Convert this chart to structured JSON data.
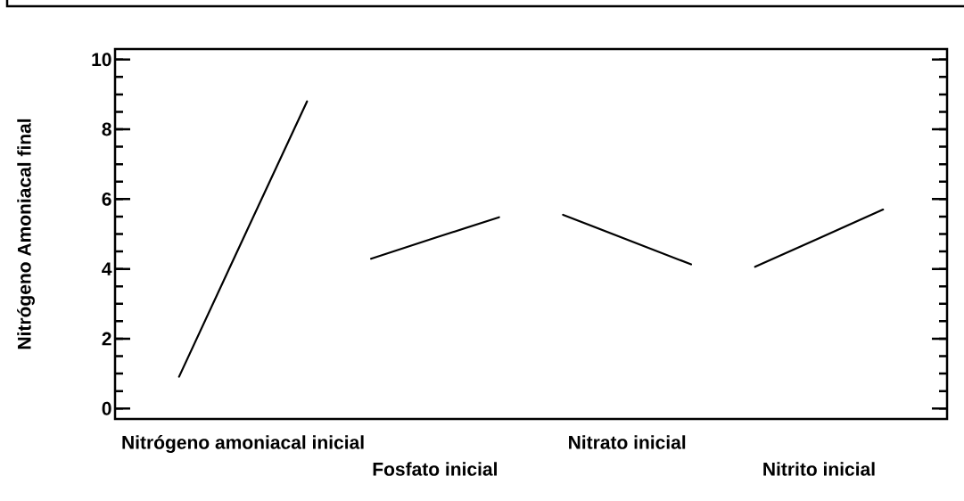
{
  "chart_data": {
    "type": "line",
    "ylabel": "Nitrógeno Amoniacal final",
    "categories": [
      null,
      "Nitrógeno amoniacal inicial",
      null,
      null,
      "Fosfato inicial",
      null,
      null,
      "Nitrato inicial",
      null,
      null,
      "Nitrito inicial",
      null
    ],
    "series": [
      {
        "color": "#000000",
        "values": [
          0.91,
          4.86,
          8.8,
          null,
          null,
          null,
          null,
          null,
          null,
          null,
          null,
          null
        ]
      },
      {
        "color": "#000000",
        "values": [
          null,
          null,
          null,
          4.29,
          4.89,
          5.48,
          null,
          null,
          null,
          null,
          null,
          null
        ]
      },
      {
        "color": "#000000",
        "values": [
          null,
          null,
          null,
          null,
          null,
          null,
          5.55,
          4.84,
          4.13,
          null,
          null,
          null
        ]
      },
      {
        "color": "#000000",
        "values": [
          null,
          null,
          null,
          null,
          null,
          null,
          null,
          null,
          null,
          4.06,
          4.88,
          5.7
        ]
      }
    ],
    "ylim": [
      -0.3,
      10.3
    ],
    "yticks": [
      0,
      {
        "value": 0.5,
        "label": null
      },
      {
        "value": 1,
        "label": null
      },
      {
        "value": 1.5,
        "label": null
      },
      2,
      {
        "value": 2.5,
        "label": null
      },
      {
        "value": 3,
        "label": null
      },
      {
        "value": 3.5,
        "label": null
      },
      4,
      {
        "value": 4.5,
        "label": null
      },
      {
        "value": 5,
        "label": null
      },
      {
        "value": 5.5,
        "label": null
      },
      6,
      {
        "value": 6.5,
        "label": null
      },
      {
        "value": 7,
        "label": null
      },
      {
        "value": 7.5,
        "label": null
      },
      8,
      {
        "value": 8.5,
        "label": null
      },
      {
        "value": 9,
        "label": null
      },
      {
        "value": 9.5,
        "label": null
      },
      10
    ]
  }
}
